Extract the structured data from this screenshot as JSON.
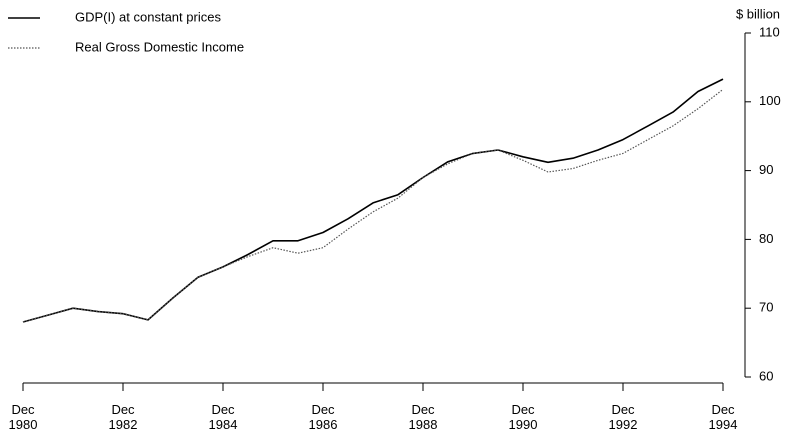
{
  "chart_data": {
    "type": "line",
    "y_axis_label": "$ billion",
    "x": [
      1980,
      1980.5,
      1981,
      1981.5,
      1982,
      1982.5,
      1983,
      1983.5,
      1984,
      1984.5,
      1985,
      1985.5,
      1986,
      1986.5,
      1987,
      1987.5,
      1988,
      1988.5,
      1989,
      1989.5,
      1990,
      1990.5,
      1991,
      1991.5,
      1992,
      1992.5,
      1993,
      1993.5,
      1994
    ],
    "series": [
      {
        "name": "GDP(I) at constant prices",
        "color": "#000000",
        "dash": "none",
        "values": [
          68,
          69,
          70,
          69.5,
          69.2,
          68.3,
          71.5,
          74.5,
          76,
          77.8,
          79.8,
          79.8,
          81,
          83,
          85.3,
          86.5,
          89,
          91.3,
          92.5,
          93,
          92,
          91.2,
          91.8,
          93,
          94.5,
          96.5,
          98.5,
          101.5,
          103.3
        ]
      },
      {
        "name": "Real Gross Domestic Income",
        "color": "#555555",
        "dash": "1.5 1.5",
        "values": [
          68,
          69,
          70,
          69.5,
          69.2,
          68.3,
          71.5,
          74.5,
          76,
          77.5,
          78.8,
          78,
          78.8,
          81.5,
          84,
          86,
          89,
          91,
          92.5,
          93,
          91.5,
          89.8,
          90.3,
          91.5,
          92.5,
          94.5,
          96.5,
          99,
          101.8
        ]
      }
    ],
    "xlim": [
      1980,
      1994
    ],
    "xticks": [
      {
        "value": 1980,
        "label": "Dec\n1980"
      },
      {
        "value": 1982,
        "label": "Dec\n1982"
      },
      {
        "value": 1984,
        "label": "Dec\n1984"
      },
      {
        "value": 1986,
        "label": "Dec\n1986"
      },
      {
        "value": 1988,
        "label": "Dec\n1988"
      },
      {
        "value": 1990,
        "label": "Dec\n1990"
      },
      {
        "value": 1992,
        "label": "Dec\n1992"
      },
      {
        "value": 1994,
        "label": "Dec\n1994"
      }
    ],
    "ylim": [
      60,
      110
    ],
    "yticks": [
      60,
      70,
      80,
      90,
      100,
      110
    ],
    "y_axis_side": "right",
    "grid": false,
    "legend": "top-left"
  }
}
